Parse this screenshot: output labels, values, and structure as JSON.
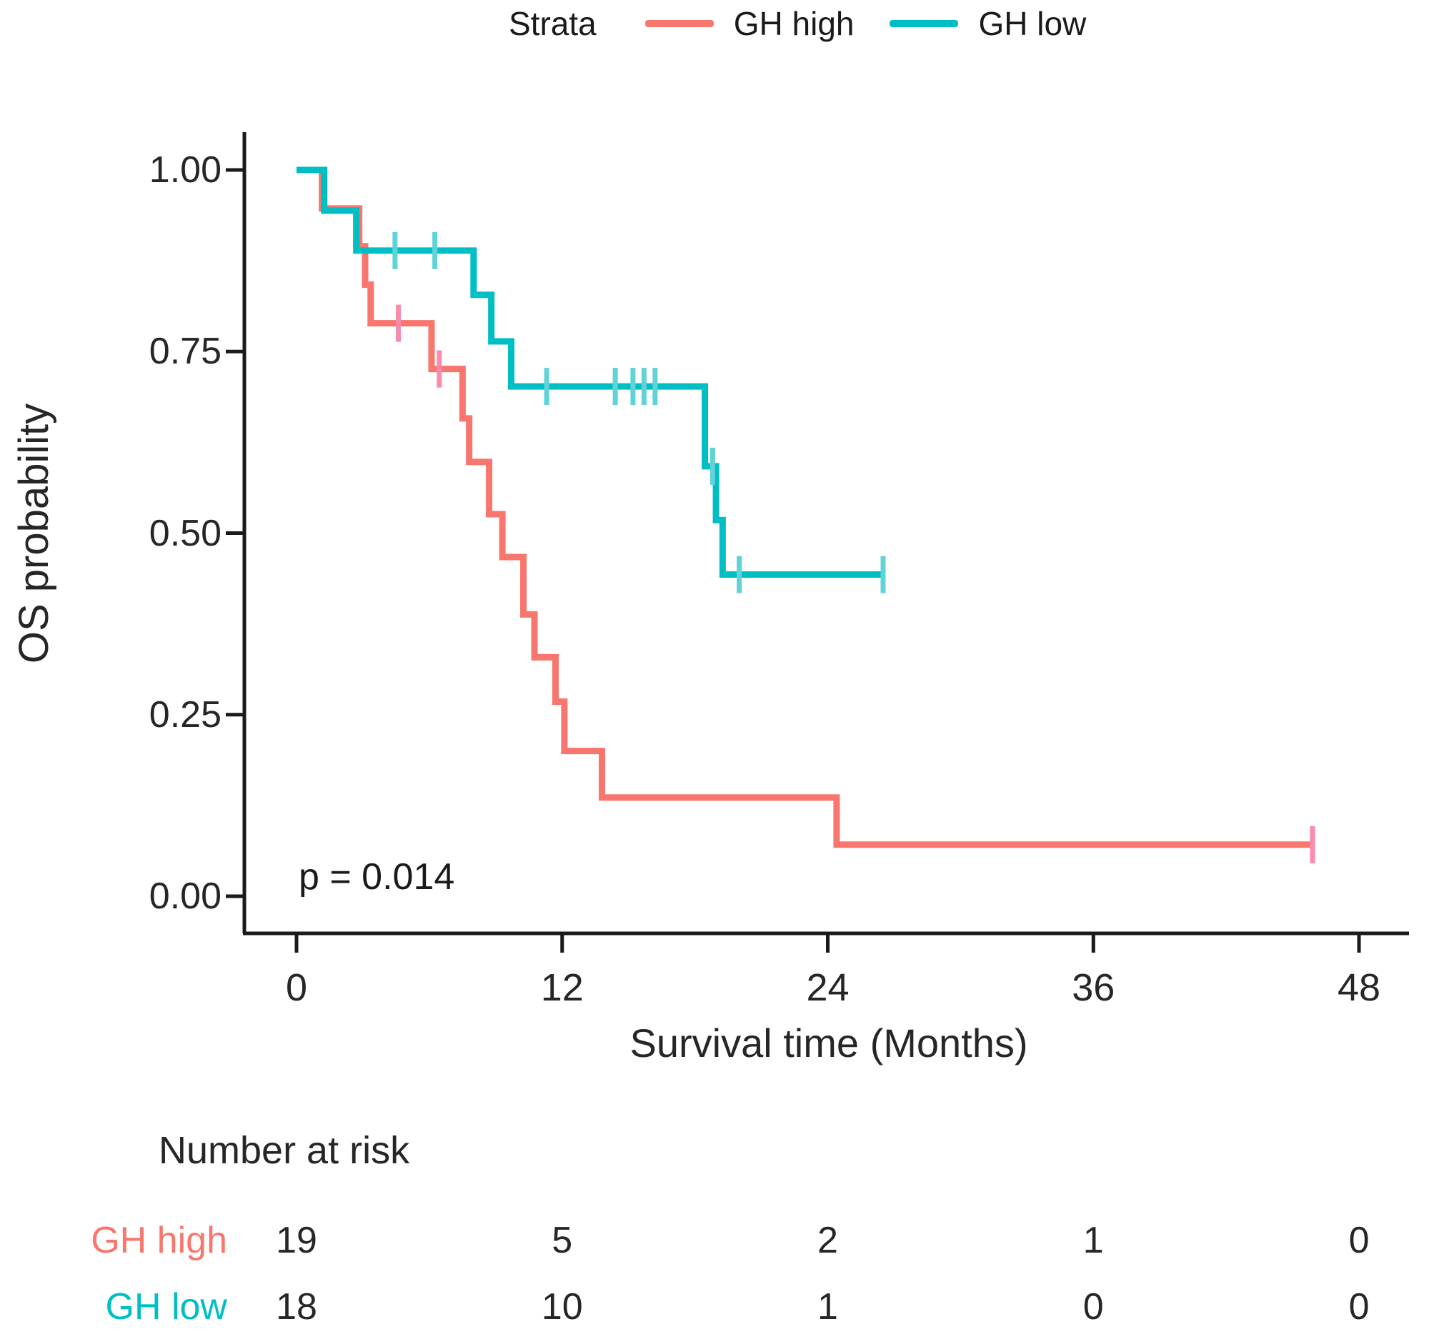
{
  "legend": {
    "title": "Strata",
    "items": [
      {
        "label": "GH high",
        "color": "#f8766d"
      },
      {
        "label": "GH low",
        "color": "#00bfc4"
      }
    ]
  },
  "axes": {
    "y_title": "OS probability",
    "x_title": "Survival time (Months)",
    "y_ticks": [
      "1.00",
      "0.75",
      "0.50",
      "0.25",
      "0.00"
    ],
    "x_ticks": [
      "0",
      "12",
      "24",
      "36",
      "48"
    ]
  },
  "annotation": {
    "p_value": "p = 0.014"
  },
  "risk_table": {
    "header": "Number at risk",
    "rows": [
      {
        "label": "GH high",
        "color": "#f8766d",
        "values": [
          "19",
          "5",
          "2",
          "1",
          "0"
        ]
      },
      {
        "label": "GH low",
        "color": "#00bfc4",
        "values": [
          "18",
          "10",
          "1",
          "0",
          "0"
        ]
      }
    ]
  },
  "colors": {
    "axis": "#1a1a1a",
    "text": "#262626",
    "gh_high": "#f8766d",
    "gh_high_censor": "#fb8bab",
    "gh_low": "#00bfc4",
    "gh_low_censor": "#5fd3d8"
  },
  "chart_data": {
    "type": "line",
    "subtype": "kaplan-meier-survival",
    "title": "",
    "xlabel": "Survival time (Months)",
    "ylabel": "OS probability",
    "xlim": [
      0,
      48
    ],
    "ylim": [
      0.0,
      1.0
    ],
    "x_tick_values": [
      0,
      12,
      24,
      36,
      48
    ],
    "y_tick_values": [
      1.0,
      0.75,
      0.5,
      0.25,
      0.0
    ],
    "grid": false,
    "legend_position": "top",
    "p_value_text": "p = 0.014",
    "series": [
      {
        "name": "GH high",
        "color": "#f8766d",
        "censor_color": "#fb8bab",
        "steps": [
          [
            0,
            1.0
          ],
          [
            1.15,
            0.947
          ],
          [
            2.83,
            0.895
          ],
          [
            3.1,
            0.842
          ],
          [
            3.35,
            0.789
          ],
          [
            6.1,
            0.726
          ],
          [
            7.5,
            0.658
          ],
          [
            7.8,
            0.598
          ],
          [
            8.7,
            0.526
          ],
          [
            9.3,
            0.467
          ],
          [
            10.25,
            0.388
          ],
          [
            10.75,
            0.329
          ],
          [
            11.7,
            0.268
          ],
          [
            12.1,
            0.2
          ],
          [
            13.8,
            0.136
          ],
          [
            24.4,
            0.071
          ]
        ],
        "end_time": 45.9,
        "censors": [
          [
            4.6,
            0.789
          ],
          [
            6.45,
            0.726
          ],
          [
            45.9,
            0.071
          ]
        ],
        "number_at_risk": {
          "times": [
            0,
            12,
            24,
            36,
            48
          ],
          "counts": [
            19,
            5,
            2,
            1,
            0
          ]
        }
      },
      {
        "name": "GH low",
        "color": "#00bfc4",
        "censor_color": "#5fd3d8",
        "steps": [
          [
            0,
            1.0
          ],
          [
            1.25,
            0.944
          ],
          [
            2.7,
            0.889
          ],
          [
            8.0,
            0.828
          ],
          [
            8.8,
            0.764
          ],
          [
            9.7,
            0.702
          ],
          [
            18.45,
            0.592
          ],
          [
            18.95,
            0.518
          ],
          [
            19.25,
            0.443
          ]
        ],
        "end_time": 26.5,
        "censors": [
          [
            4.45,
            0.889
          ],
          [
            6.25,
            0.889
          ],
          [
            11.3,
            0.702
          ],
          [
            14.4,
            0.702
          ],
          [
            15.2,
            0.702
          ],
          [
            15.7,
            0.702
          ],
          [
            16.2,
            0.702
          ],
          [
            18.8,
            0.592
          ],
          [
            20.0,
            0.443
          ],
          [
            26.5,
            0.443
          ]
        ],
        "number_at_risk": {
          "times": [
            0,
            12,
            24,
            36,
            48
          ],
          "counts": [
            18,
            10,
            1,
            0,
            0
          ]
        }
      }
    ]
  }
}
